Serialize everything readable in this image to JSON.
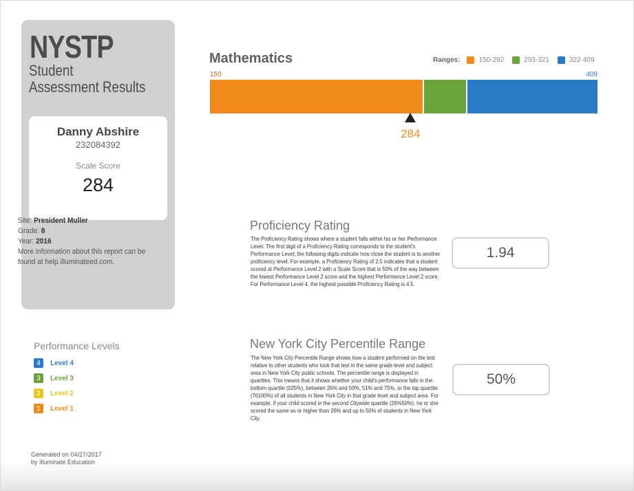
{
  "brand": {
    "title": "NYSTP",
    "subtitle": "Student Assessment Results"
  },
  "student": {
    "name": "Danny Abshire",
    "id": "232084392",
    "score_label": "Scale Score",
    "score": "284"
  },
  "info": {
    "site_label": "Site:",
    "site": "President Muller",
    "grade_label": "Grade:",
    "grade": "8",
    "year_label": "Year:",
    "year": "2016",
    "more": "More information about this report can be found at help.illuminateed.com."
  },
  "levels": {
    "title": "Performance Levels",
    "items": [
      {
        "number": "4",
        "label": "Level 4",
        "color": "#2a7bc6"
      },
      {
        "number": "3",
        "label": "Level 3",
        "color": "#6aa43a"
      },
      {
        "number": "2",
        "label": "Level 2",
        "color": "#e8c81a"
      },
      {
        "number": "1",
        "label": "Level 1",
        "color": "#f28b1c"
      }
    ]
  },
  "footer": {
    "line1": "Generated on 04/27/2017",
    "line2": "by Illuminate Education"
  },
  "math": {
    "title": "Mathematics",
    "ranges_label": "Ranges:",
    "ranges": [
      {
        "label": "150-292",
        "min": 150,
        "max": 292,
        "color": "#f28b1c"
      },
      {
        "label": "293-321",
        "min": 293,
        "max": 321,
        "color": "#6aa43a"
      },
      {
        "label": "322-409",
        "min": 322,
        "max": 409,
        "color": "#2a7bc6"
      }
    ],
    "scale_min": "150",
    "scale_max": "409",
    "score_value": 284,
    "score_label": "284"
  },
  "proficiency": {
    "title": "Proficiency Rating",
    "description": "The Proficiency Rating shows where a student falls within his or her Performance Level. The first digit of a Proficiency Rating corresponds to the student's Performance Level; the following digits indicate how close the student is to another proficiency level. For example, a Proficiency Rating of 2.5 indicates that a student scored at Performance Level 2 with a Scale Score that is 50% of the way between the lowest Performance Level 2 score and the highest Performance Level 2 score. For Performance Level 4, the highest possible Proficiency Rating is 4.5.",
    "value": "1.94"
  },
  "percentile": {
    "title": "New York City Percentile Range",
    "description": "The New York City Percentile Range shows how a student performed on the test relative to other students who took that test in the same grade level and subject area in New York City public schools. The percentile range is displayed in quartiles. This means that it shows whether your child's performance falls in the bottom quartile (025%), between 26% and 50%, 51% and 75%, or the top quartile (76100%) of all students in New York City in that grade level and subject area. For example, if your child scored in the second Citywide quartile (26%50%), he or she scored the same as or higher than 26% and up to 50% of students in New York City.",
    "value": "50%"
  }
}
